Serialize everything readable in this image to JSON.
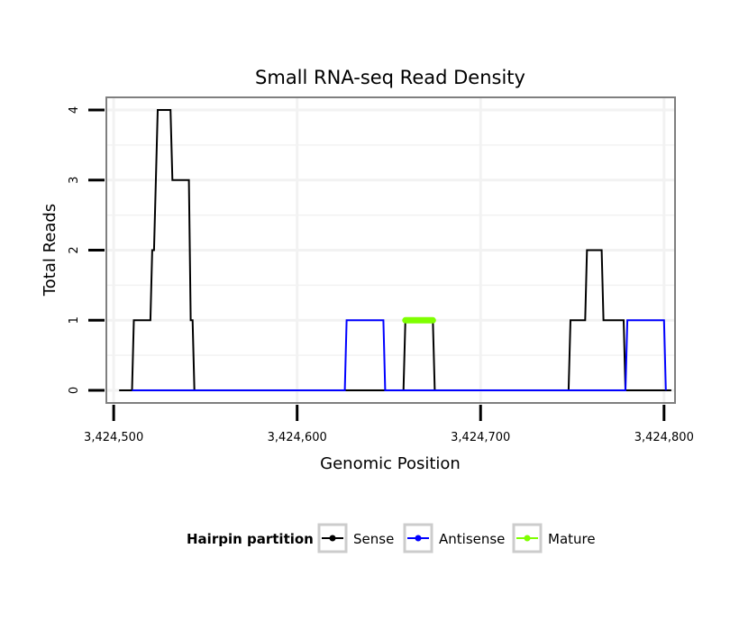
{
  "chart_data": {
    "type": "line",
    "title": "Small RNA-seq Read Density",
    "xlabel": "Genomic Position",
    "ylabel": "Total Reads",
    "xlim": [
      3424496,
      3424806
    ],
    "ylim": [
      -0.18,
      4.18
    ],
    "x_ticks": [
      3424500,
      3424600,
      3424700,
      3424800
    ],
    "x_tick_labels": [
      "3,424,500",
      "3,424,600",
      "3,424,700",
      "3,424,800"
    ],
    "y_ticks": [
      0,
      1,
      2,
      3,
      4
    ],
    "y_tick_labels": [
      "0",
      "1",
      "2",
      "3",
      "4"
    ],
    "grid": true,
    "legend": {
      "title": "Hairpin partition",
      "position": "bottom",
      "entries": [
        "Sense",
        "Antisense",
        "Mature"
      ]
    },
    "series": [
      {
        "name": "Sense",
        "color": "#000000",
        "points": [
          [
            3424503,
            0
          ],
          [
            3424510,
            0
          ],
          [
            3424511,
            1
          ],
          [
            3424520,
            1
          ],
          [
            3424521,
            2
          ],
          [
            3424522,
            2
          ],
          [
            3424524,
            4
          ],
          [
            3424531,
            4
          ],
          [
            3424532,
            3
          ],
          [
            3424541,
            3
          ],
          [
            3424542,
            1
          ],
          [
            3424543,
            1
          ],
          [
            3424544,
            0
          ],
          [
            3424658,
            0
          ],
          [
            3424659,
            1
          ],
          [
            3424674,
            1
          ],
          [
            3424675,
            0
          ],
          [
            3424748,
            0
          ],
          [
            3424749,
            1
          ],
          [
            3424757,
            1
          ],
          [
            3424758,
            2
          ],
          [
            3424766,
            2
          ],
          [
            3424767,
            1
          ],
          [
            3424778,
            1
          ],
          [
            3424779,
            0
          ],
          [
            3424804,
            0
          ]
        ]
      },
      {
        "name": "Antisense",
        "color": "#0000ff",
        "points": [
          [
            3424510,
            0
          ],
          [
            3424626,
            0
          ],
          [
            3424627,
            1
          ],
          [
            3424647,
            1
          ],
          [
            3424648,
            0
          ],
          [
            3424750,
            0
          ],
          [
            3424779,
            0
          ],
          [
            3424780,
            1
          ],
          [
            3424800,
            1
          ],
          [
            3424801,
            0
          ]
        ]
      },
      {
        "name": "Mature",
        "color": "#7fff00",
        "points": [
          [
            3424659,
            1
          ],
          [
            3424674,
            1
          ]
        ]
      }
    ]
  }
}
